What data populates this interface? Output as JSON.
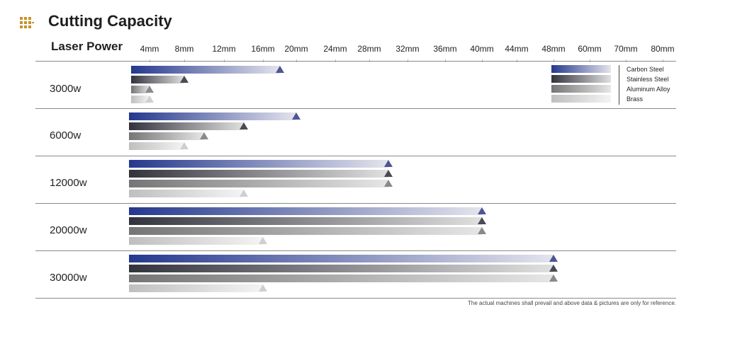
{
  "header": {
    "title": "Cutting Capacity",
    "title_icon": "dot-grid-icon",
    "icon_color": "#c8922a"
  },
  "table": {
    "column_header": "Laser Power"
  },
  "footnote": "The actual machines shall prevail and above data & pictures are only for reference.",
  "colors": {
    "Carbon Steel": "#2a3a8f",
    "Stainless Steel": "#3a3a45",
    "Aluminum Alloy": "#7a7a7a",
    "Brass": "#c4c4c4"
  },
  "chart_data": {
    "type": "bar",
    "orientation": "horizontal",
    "x_categories": [
      "4mm",
      "8mm",
      "12mm",
      "16mm",
      "20mm",
      "24mm",
      "28mm",
      "32mm",
      "36mm",
      "40mm",
      "44mm",
      "48mm",
      "60mm",
      "70mm",
      "80mm"
    ],
    "rows": [
      "3000w",
      "6000w",
      "12000w",
      "20000w",
      "30000w"
    ],
    "series": [
      {
        "name": "Carbon Steel",
        "values": [
          "18mm",
          "20mm",
          "30mm",
          "40mm",
          "48mm"
        ]
      },
      {
        "name": "Stainless Steel",
        "values": [
          "8mm",
          "14mm",
          "30mm",
          "40mm",
          "48mm"
        ]
      },
      {
        "name": "Aluminum Alloy",
        "values": [
          "4mm",
          "10mm",
          "30mm",
          "40mm",
          "48mm"
        ]
      },
      {
        "name": "Brass",
        "values": [
          "4mm",
          "8mm",
          "14mm",
          "16mm",
          "16mm"
        ]
      }
    ],
    "legend": "top-right"
  }
}
